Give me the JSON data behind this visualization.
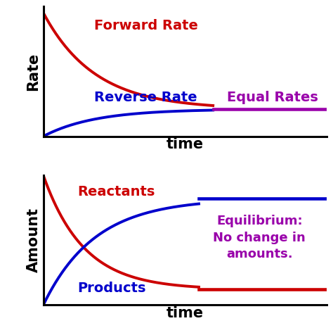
{
  "top_panel": {
    "forward_color": "#cc0000",
    "reverse_color": "#0000cc",
    "equal_color": "#9900aa",
    "forward_label": "Forward Rate",
    "reverse_label": "Reverse Rate",
    "equal_label": "Equal Rates",
    "ylabel": "Rate",
    "xlabel": "time",
    "forward_label_color": "#cc0000",
    "reverse_label_color": "#0000cc",
    "equal_label_color": "#9900aa",
    "fwd_decay": 0.55,
    "eq_val": 0.22,
    "eq_t": 6.0
  },
  "bottom_panel": {
    "reactant_color": "#cc0000",
    "product_color": "#0000cc",
    "eq_text_color": "#9900aa",
    "reactant_label": "Reactants",
    "product_label": "Products",
    "eq_label": "Equilibrium:\nNo change in\namounts.",
    "ylabel": "Amount",
    "xlabel": "time",
    "reactant_label_color": "#cc0000",
    "product_label_color": "#0000cc",
    "react_decay": 0.7,
    "prod_rate": 0.55,
    "high_val": 0.82,
    "low_val": 0.12,
    "eq_t2": 5.5
  },
  "background_color": "#ffffff",
  "line_width": 2.8,
  "font_size_labels": 14,
  "font_size_axis": 15,
  "font_size_eq": 13
}
